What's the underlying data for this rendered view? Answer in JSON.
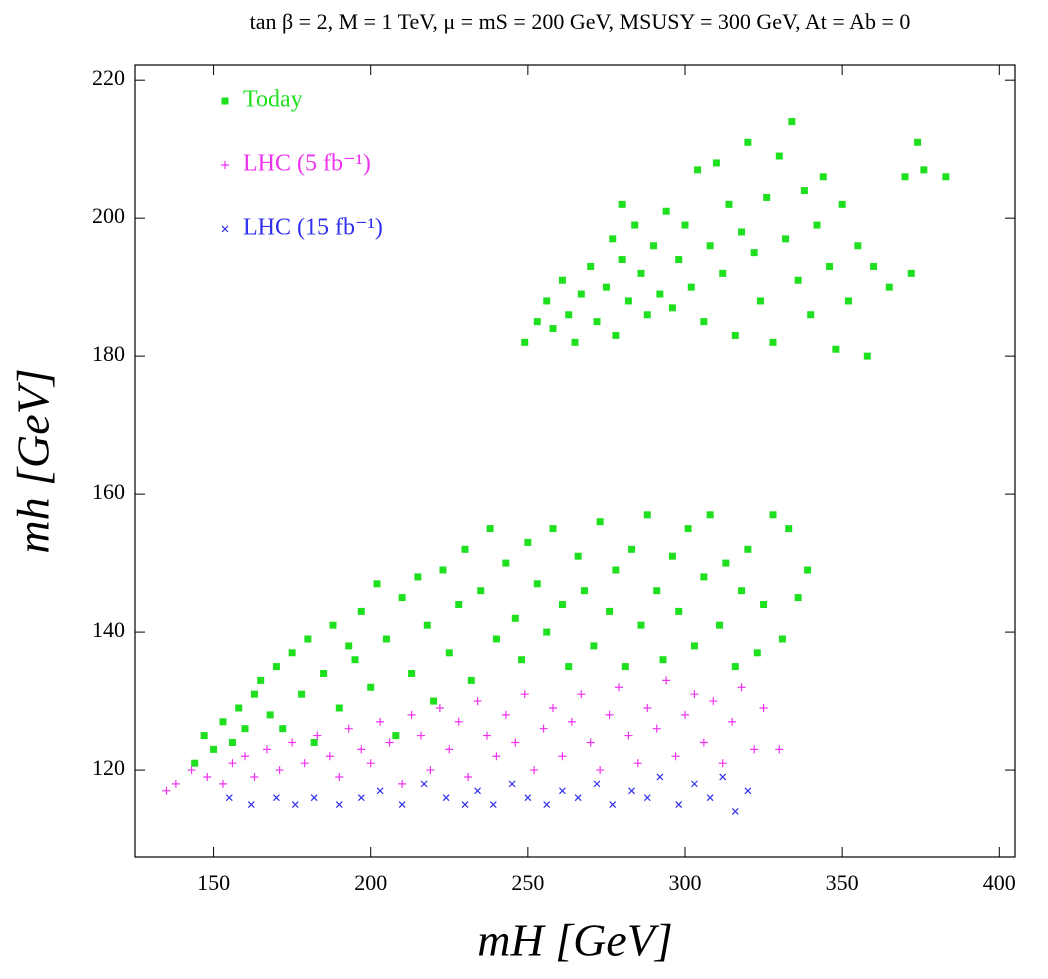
{
  "chart_data": {
    "type": "scatter",
    "title": "tan β = 2, M = 1 TeV, μ = mS = 200 GeV, MSUSY = 300 GeV, At = Ab = 0",
    "x_label": "mH [GeV]",
    "y_label": "mh [GeV]",
    "xlim": [
      125,
      405
    ],
    "ylim": [
      107.4,
      222.2
    ],
    "xticks": [
      150,
      200,
      250,
      300,
      350,
      400
    ],
    "yticks": [
      120,
      140,
      160,
      180,
      200,
      220
    ],
    "grid": false,
    "legend": "upper left",
    "series": [
      {
        "name": "Today",
        "color": "#1fe01f",
        "marker": "square",
        "x": [
          249,
          253,
          256,
          258,
          261,
          263,
          265,
          267,
          270,
          272,
          275,
          277,
          278,
          280,
          282,
          284,
          286,
          288,
          290,
          292,
          294,
          296,
          298,
          300,
          302,
          304,
          306,
          308,
          310,
          312,
          314,
          316,
          318,
          320,
          322,
          324,
          326,
          328,
          330,
          332,
          334,
          336,
          338,
          340,
          342,
          344,
          346,
          348,
          350,
          352,
          355,
          358,
          360,
          365,
          370,
          372,
          374,
          376,
          383,
          280,
          144,
          147,
          150,
          153,
          156,
          158,
          160,
          163,
          165,
          168,
          170,
          172,
          175,
          178,
          180,
          182,
          185,
          188,
          190,
          193,
          195,
          197,
          200,
          202,
          205,
          208,
          210,
          213,
          215,
          218,
          220,
          223,
          225,
          228,
          230,
          232,
          235,
          238,
          240,
          243,
          246,
          248,
          250,
          253,
          256,
          258,
          261,
          263,
          266,
          268,
          271,
          273,
          276,
          278,
          281,
          283,
          286,
          288,
          291,
          293,
          296,
          298,
          301,
          303,
          306,
          308,
          311,
          313,
          316,
          318,
          320,
          323,
          325,
          328,
          331,
          333,
          336,
          339
        ],
        "values": [
          182,
          185,
          188,
          184,
          191,
          186,
          182,
          189,
          193,
          185,
          190,
          197,
          183,
          194,
          188,
          199,
          192,
          186,
          196,
          189,
          201,
          187,
          194,
          199,
          190,
          207,
          185,
          196,
          208,
          192,
          202,
          183,
          198,
          211,
          195,
          188,
          203,
          182,
          209,
          197,
          214,
          191,
          204,
          186,
          199,
          206,
          193,
          181,
          202,
          188,
          196,
          180,
          193,
          190,
          206,
          192,
          211,
          207,
          206,
          202,
          121,
          125,
          123,
          127,
          124,
          129,
          126,
          131,
          133,
          128,
          135,
          126,
          137,
          131,
          139,
          124,
          134,
          141,
          129,
          138,
          136,
          143,
          132,
          147,
          139,
          125,
          145,
          134,
          148,
          141,
          130,
          149,
          137,
          144,
          152,
          133,
          146,
          155,
          139,
          150,
          142,
          136,
          153,
          147,
          140,
          155,
          144,
          135,
          151,
          146,
          138,
          156,
          143,
          149,
          135,
          152,
          141,
          157,
          146,
          136,
          151,
          143,
          155,
          138,
          148,
          157,
          141,
          150,
          135,
          146,
          152,
          137,
          144,
          157,
          139,
          155,
          145,
          149
        ]
      },
      {
        "name": "LHC (5 fb⁻¹)",
        "color": "#ee33ee",
        "marker": "plus",
        "x": [
          135,
          138,
          143,
          148,
          153,
          156,
          160,
          163,
          167,
          171,
          175,
          179,
          183,
          187,
          190,
          193,
          197,
          200,
          203,
          206,
          210,
          213,
          216,
          219,
          222,
          225,
          228,
          231,
          234,
          237,
          240,
          243,
          246,
          249,
          252,
          255,
          258,
          261,
          264,
          267,
          270,
          273,
          276,
          279,
          282,
          285,
          288,
          291,
          294,
          297,
          300,
          303,
          306,
          309,
          312,
          315,
          318,
          322,
          325,
          330
        ],
        "values": [
          117,
          118,
          120,
          119,
          118,
          121,
          122,
          119,
          123,
          120,
          124,
          121,
          125,
          122,
          119,
          126,
          123,
          121,
          127,
          124,
          118,
          128,
          125,
          120,
          129,
          123,
          127,
          119,
          130,
          125,
          122,
          128,
          124,
          131,
          120,
          126,
          129,
          122,
          127,
          131,
          124,
          120,
          128,
          132,
          125,
          121,
          129,
          126,
          133,
          122,
          128,
          131,
          124,
          130,
          121,
          127,
          132,
          123,
          129,
          123
        ]
      },
      {
        "name": "LHC (15 fb⁻¹)",
        "color": "#3030ee",
        "marker": "x",
        "x": [
          155,
          162,
          170,
          176,
          182,
          190,
          197,
          203,
          210,
          217,
          224,
          230,
          234,
          239,
          245,
          250,
          256,
          261,
          266,
          272,
          277,
          283,
          288,
          292,
          298,
          303,
          308,
          312,
          316,
          320
        ],
        "values": [
          116,
          115,
          116,
          115,
          116,
          115,
          116,
          117,
          115,
          118,
          116,
          115,
          117,
          115,
          118,
          116,
          115,
          117,
          116,
          118,
          115,
          117,
          116,
          119,
          115,
          118,
          116,
          119,
          114,
          117
        ]
      }
    ]
  }
}
